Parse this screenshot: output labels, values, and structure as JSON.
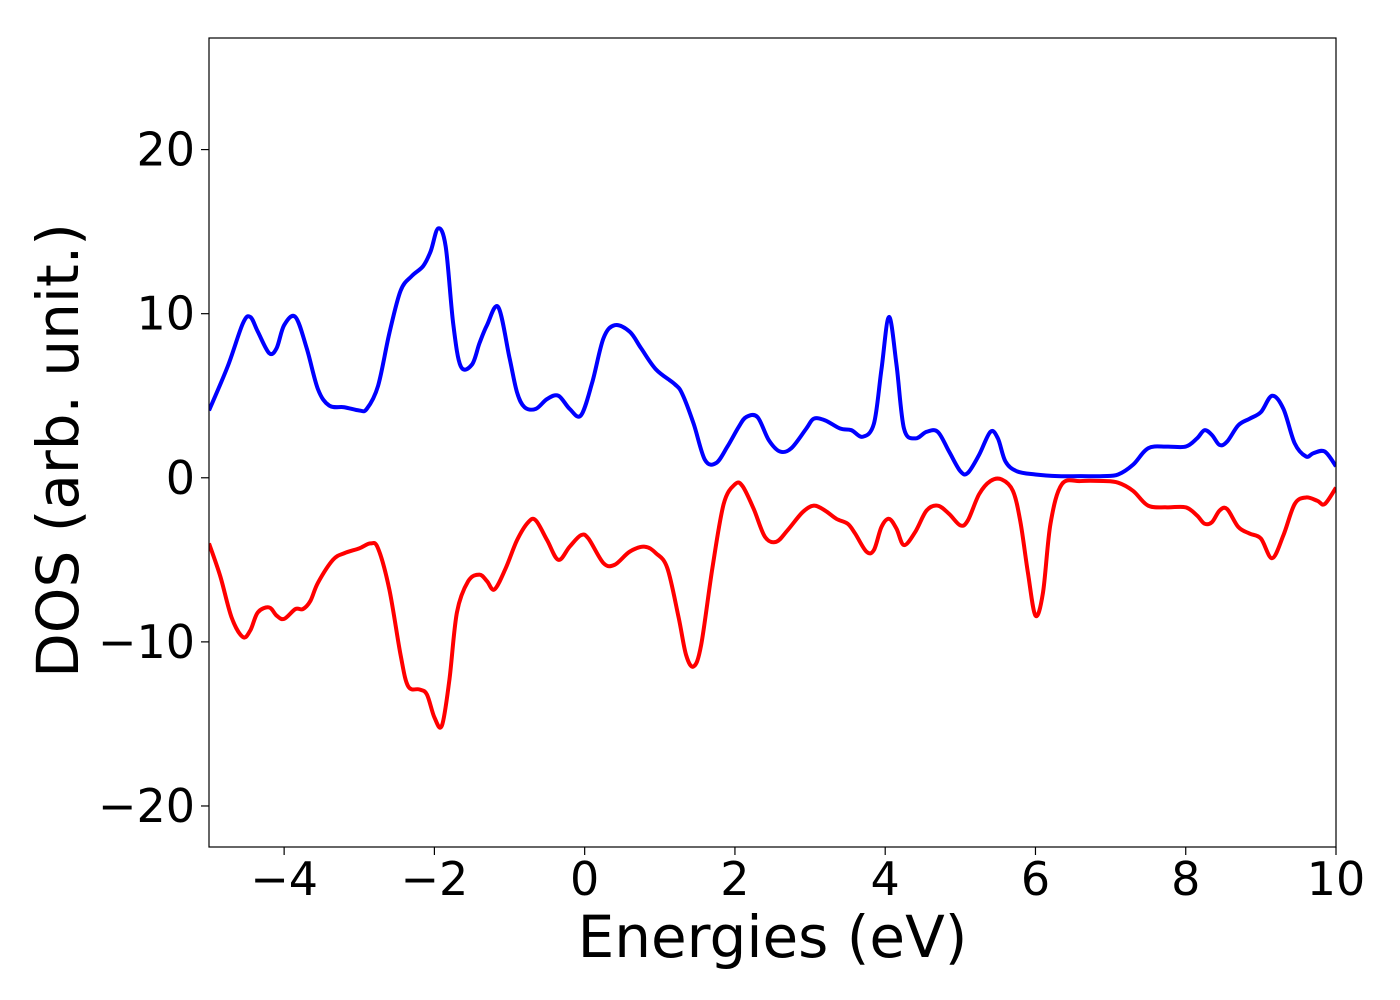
{
  "chart_data": {
    "type": "line",
    "title": "",
    "xlabel": "Energies (eV)",
    "ylabel": "DOS (arb. unit.)",
    "xlim": [
      -5,
      10
    ],
    "ylim": [
      -22.5,
      26.8
    ],
    "xticks": [
      -4,
      -2,
      0,
      2,
      4,
      6,
      8,
      10
    ],
    "yticks": [
      -20,
      -10,
      0,
      10,
      20
    ],
    "xtick_labels": [
      "−4",
      "−2",
      "0",
      "2",
      "4",
      "6",
      "8",
      "10"
    ],
    "ytick_labels": [
      "−20",
      "−10",
      "0",
      "10",
      "20"
    ],
    "grid": false,
    "legend": "none",
    "series": [
      {
        "color": "#0000ff",
        "x": [
          -5.0,
          -4.75,
          -4.55,
          -4.45,
          -4.35,
          -4.2,
          -4.1,
          -4.0,
          -3.85,
          -3.7,
          -3.55,
          -3.4,
          -3.2,
          -3.0,
          -2.9,
          -2.75,
          -2.6,
          -2.45,
          -2.3,
          -2.15,
          -2.05,
          -1.95,
          -1.85,
          -1.75,
          -1.65,
          -1.5,
          -1.4,
          -1.3,
          -1.15,
          -1.0,
          -0.9,
          -0.8,
          -0.65,
          -0.5,
          -0.35,
          -0.2,
          -0.05,
          0.1,
          0.25,
          0.4,
          0.6,
          0.75,
          0.95,
          1.2,
          1.3,
          1.45,
          1.6,
          1.75,
          1.9,
          2.05,
          2.15,
          2.3,
          2.45,
          2.6,
          2.75,
          2.95,
          3.05,
          3.2,
          3.4,
          3.55,
          3.7,
          3.85,
          3.95,
          4.05,
          4.15,
          4.25,
          4.4,
          4.55,
          4.7,
          4.85,
          5.0,
          5.1,
          5.25,
          5.4,
          5.5,
          5.6,
          5.75,
          6.0,
          6.3,
          6.6,
          6.9,
          7.1,
          7.3,
          7.5,
          7.75,
          8.0,
          8.15,
          8.25,
          8.35,
          8.45,
          8.55,
          8.7,
          8.85,
          9.0,
          9.15,
          9.3,
          9.45,
          9.6,
          9.7,
          9.85,
          10.0
        ],
        "y": [
          4.1,
          6.8,
          9.4,
          9.8,
          8.9,
          7.6,
          7.9,
          9.3,
          9.8,
          7.9,
          5.4,
          4.4,
          4.3,
          4.1,
          4.2,
          5.6,
          8.8,
          11.4,
          12.3,
          12.9,
          13.8,
          15.2,
          14.1,
          9.4,
          6.8,
          6.9,
          8.2,
          9.3,
          10.4,
          7.3,
          5.2,
          4.3,
          4.2,
          4.8,
          5.0,
          4.2,
          3.8,
          5.8,
          8.5,
          9.3,
          8.9,
          7.9,
          6.6,
          5.7,
          5.1,
          3.3,
          1.1,
          0.9,
          1.9,
          3.1,
          3.7,
          3.7,
          2.3,
          1.6,
          1.8,
          3.0,
          3.6,
          3.5,
          3.0,
          2.9,
          2.5,
          3.3,
          6.6,
          9.8,
          6.9,
          3.0,
          2.4,
          2.8,
          2.8,
          1.6,
          0.4,
          0.3,
          1.4,
          2.8,
          2.4,
          1.0,
          0.4,
          0.2,
          0.1,
          0.1,
          0.1,
          0.2,
          0.8,
          1.8,
          1.9,
          1.9,
          2.4,
          2.9,
          2.6,
          2.0,
          2.2,
          3.2,
          3.6,
          4.0,
          5.0,
          4.2,
          2.1,
          1.3,
          1.5,
          1.6,
          0.7
        ]
      },
      {
        "color": "#ff0000",
        "x": [
          -5.0,
          -4.85,
          -4.7,
          -4.55,
          -4.45,
          -4.35,
          -4.2,
          -4.1,
          -4.0,
          -3.85,
          -3.75,
          -3.65,
          -3.55,
          -3.35,
          -3.2,
          -3.0,
          -2.85,
          -2.75,
          -2.6,
          -2.45,
          -2.35,
          -2.2,
          -2.1,
          -2.0,
          -1.9,
          -1.8,
          -1.7,
          -1.55,
          -1.4,
          -1.3,
          -1.2,
          -1.05,
          -0.9,
          -0.75,
          -0.65,
          -0.5,
          -0.35,
          -0.2,
          -0.05,
          0.05,
          0.25,
          0.4,
          0.6,
          0.8,
          0.95,
          1.1,
          1.25,
          1.35,
          1.45,
          1.55,
          1.7,
          1.85,
          2.0,
          2.1,
          2.25,
          2.4,
          2.55,
          2.7,
          2.9,
          3.05,
          3.2,
          3.35,
          3.5,
          3.6,
          3.75,
          3.85,
          3.95,
          4.05,
          4.15,
          4.25,
          4.4,
          4.55,
          4.7,
          4.85,
          5.0,
          5.1,
          5.25,
          5.4,
          5.55,
          5.7,
          5.8,
          5.9,
          6.0,
          6.1,
          6.2,
          6.35,
          6.6,
          6.9,
          7.1,
          7.3,
          7.5,
          7.75,
          8.0,
          8.15,
          8.25,
          8.35,
          8.45,
          8.55,
          8.7,
          8.85,
          9.0,
          9.15,
          9.3,
          9.45,
          9.6,
          9.75,
          9.85,
          10.0
        ],
        "y": [
          -4.0,
          -6.0,
          -8.5,
          -9.7,
          -9.3,
          -8.2,
          -7.9,
          -8.4,
          -8.6,
          -8.0,
          -8.0,
          -7.5,
          -6.4,
          -5.0,
          -4.6,
          -4.3,
          -4.0,
          -4.3,
          -6.8,
          -10.8,
          -12.7,
          -12.9,
          -13.2,
          -14.6,
          -15.1,
          -12.3,
          -8.2,
          -6.3,
          -5.9,
          -6.3,
          -6.8,
          -5.5,
          -3.8,
          -2.7,
          -2.6,
          -3.8,
          -5.0,
          -4.2,
          -3.5,
          -3.7,
          -5.2,
          -5.3,
          -4.5,
          -4.2,
          -4.6,
          -5.5,
          -8.5,
          -10.8,
          -11.5,
          -10.2,
          -5.5,
          -1.6,
          -0.4,
          -0.5,
          -1.9,
          -3.6,
          -3.9,
          -3.2,
          -2.1,
          -1.7,
          -2.0,
          -2.5,
          -2.8,
          -3.4,
          -4.5,
          -4.4,
          -3.0,
          -2.5,
          -3.1,
          -4.1,
          -3.3,
          -2.0,
          -1.7,
          -2.2,
          -2.9,
          -2.6,
          -1.0,
          -0.2,
          -0.1,
          -0.8,
          -2.7,
          -5.8,
          -8.4,
          -7.0,
          -2.8,
          -0.4,
          -0.2,
          -0.2,
          -0.3,
          -0.8,
          -1.7,
          -1.8,
          -1.8,
          -2.3,
          -2.8,
          -2.7,
          -2.0,
          -1.9,
          -3.0,
          -3.4,
          -3.7,
          -4.9,
          -3.5,
          -1.6,
          -1.2,
          -1.4,
          -1.6,
          -0.6
        ]
      }
    ]
  }
}
